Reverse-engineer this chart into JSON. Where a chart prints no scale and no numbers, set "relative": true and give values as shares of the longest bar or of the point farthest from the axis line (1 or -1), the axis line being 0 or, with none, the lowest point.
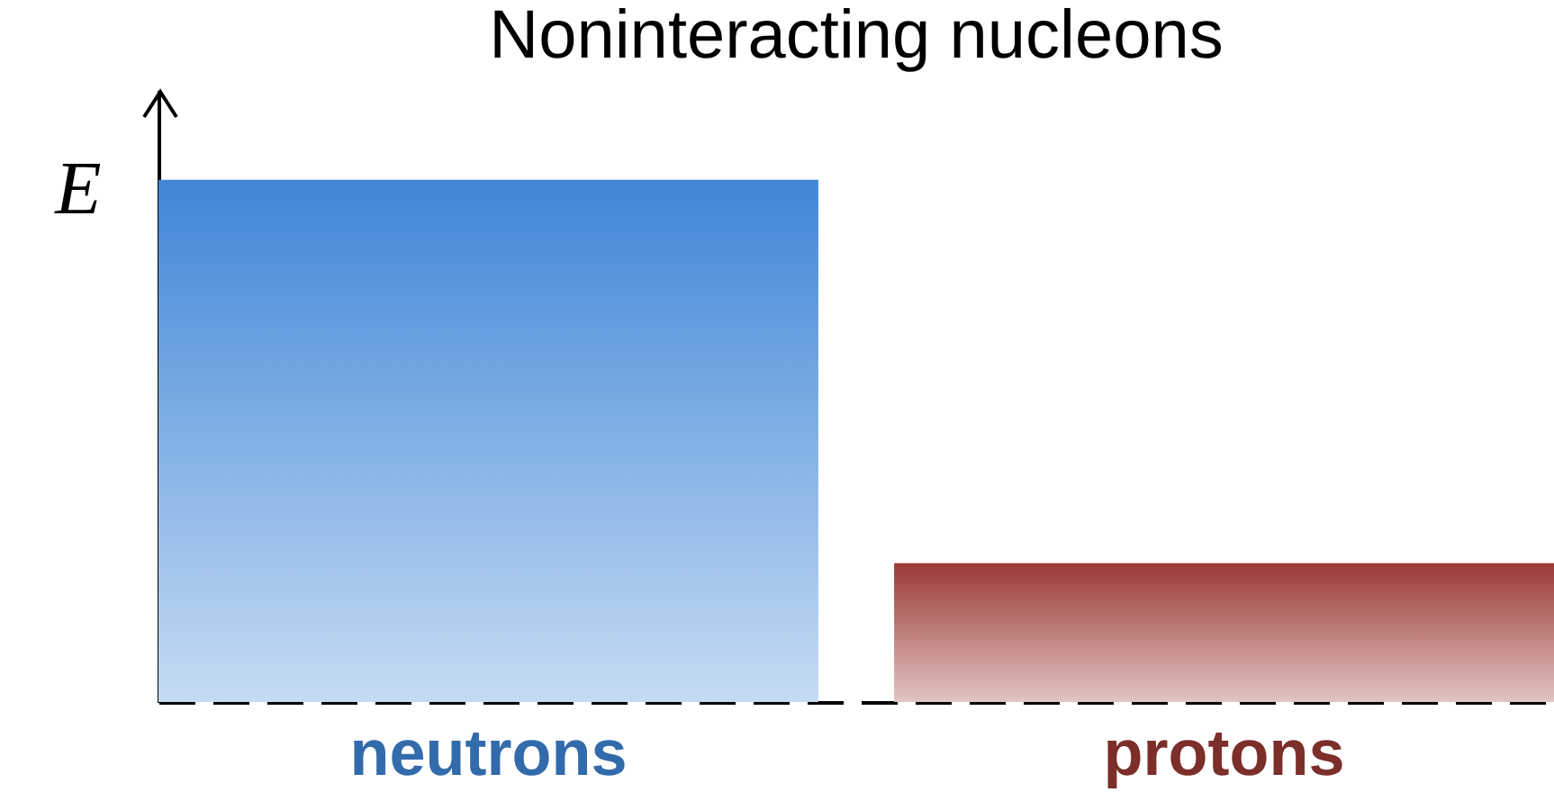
{
  "chart_data": {
    "type": "bar",
    "title": "Noninteracting nucleons",
    "ylabel": "E",
    "relative": true,
    "categories": [
      "neutrons",
      "protons"
    ],
    "values": [
      1,
      0.266
    ],
    "colors": [
      "#3f86d6",
      "#9b3a35"
    ]
  }
}
